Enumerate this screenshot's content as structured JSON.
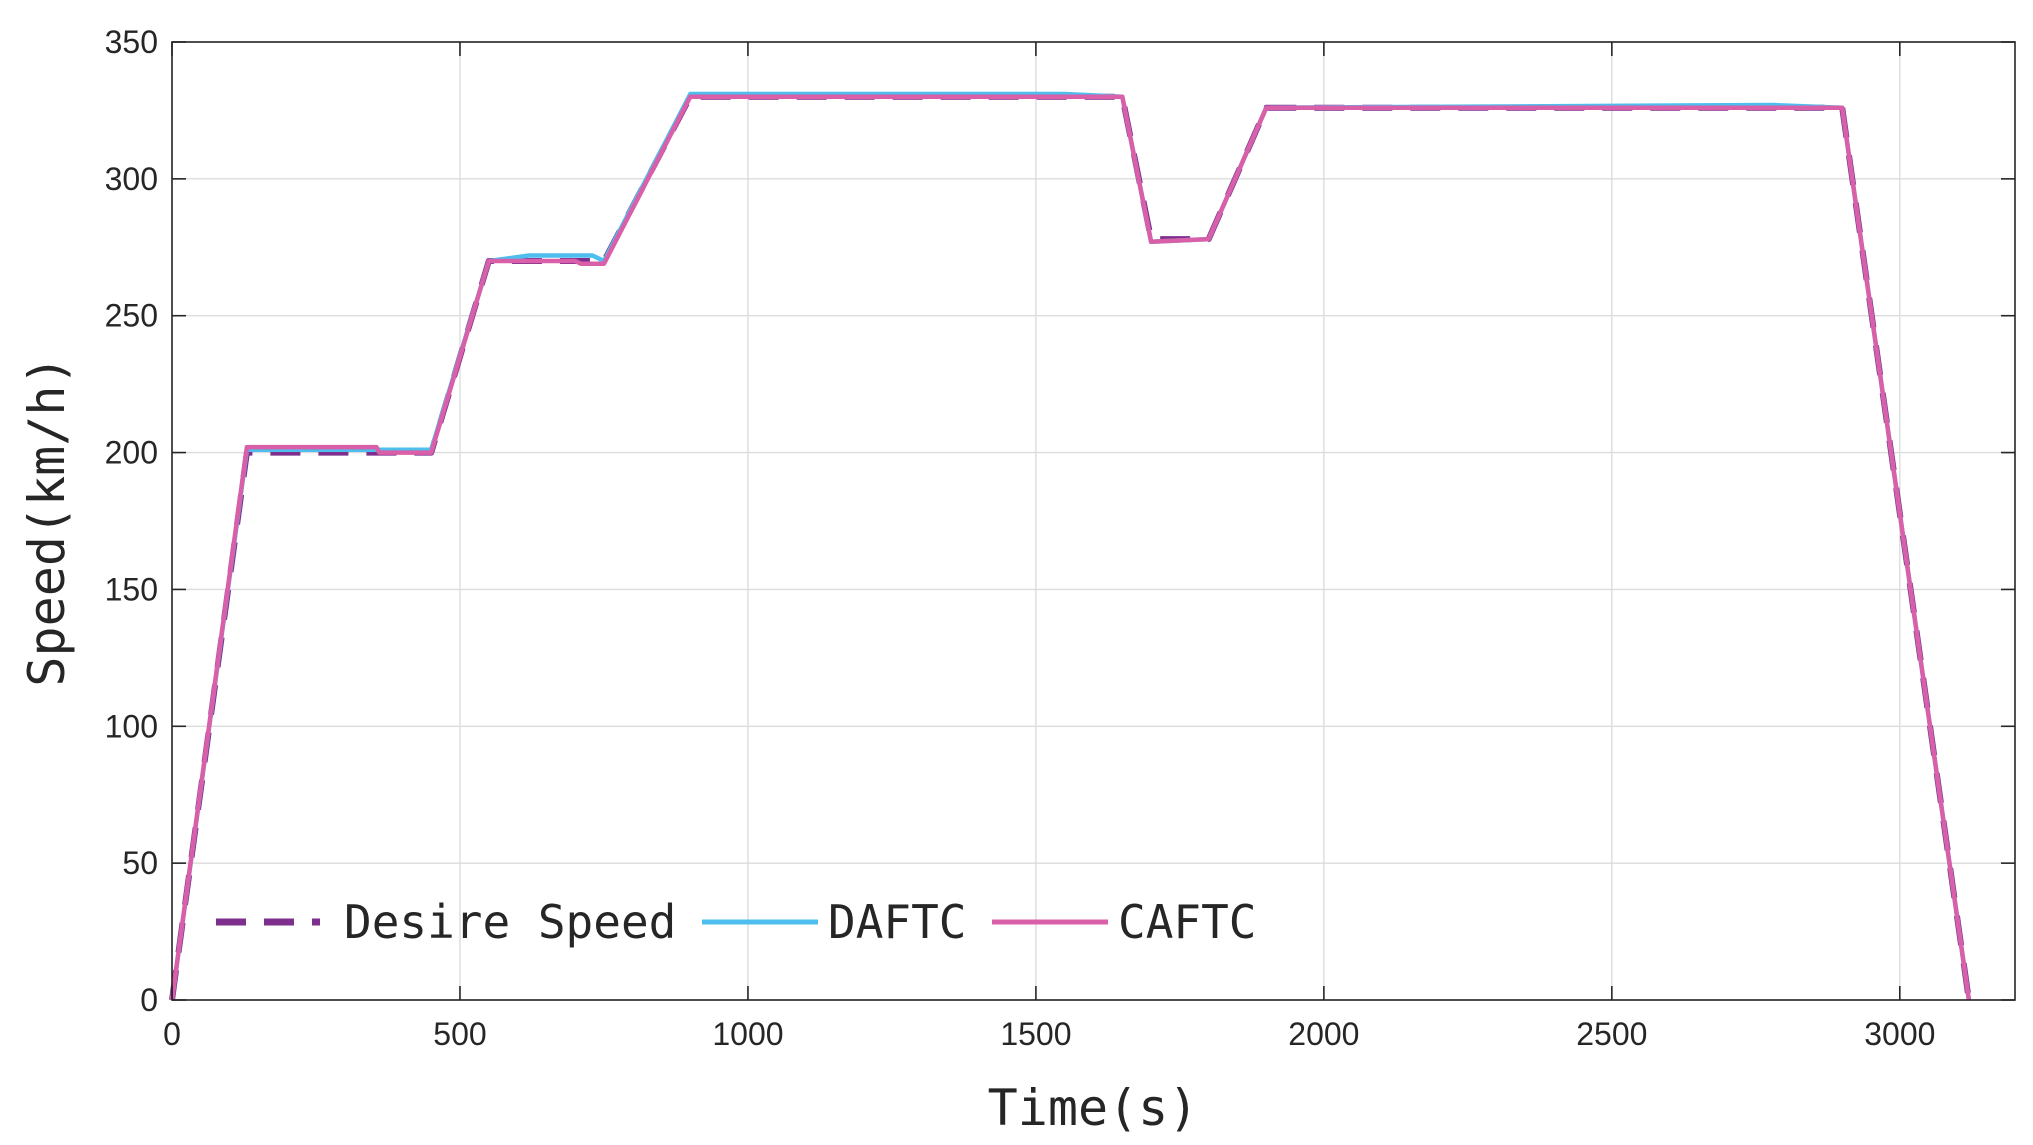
{
  "chart_data": {
    "type": "line",
    "xlabel": "Time(s)",
    "ylabel": "Speed(km/h)",
    "xlim": [
      0,
      3200
    ],
    "ylim": [
      0,
      350
    ],
    "xticks": [
      0,
      500,
      1000,
      1500,
      2000,
      2500,
      3000
    ],
    "yticks": [
      0,
      50,
      100,
      150,
      200,
      250,
      300,
      350
    ],
    "grid": true,
    "legend_position": "bottom-left",
    "series": [
      {
        "name": "Desire Speed",
        "color": "#7e2f8e",
        "style": "dashed",
        "x": [
          0,
          130,
          450,
          550,
          750,
          900,
          1650,
          1700,
          1800,
          1900,
          2900,
          3120
        ],
        "y": [
          0,
          200,
          200,
          270,
          270,
          330,
          330,
          278,
          278,
          326,
          326,
          0
        ]
      },
      {
        "name": "DAFTC",
        "color": "#4dbeee",
        "style": "solid",
        "x": [
          0,
          130,
          350,
          450,
          550,
          620,
          730,
          750,
          900,
          1550,
          1650,
          1700,
          1800,
          1900,
          2780,
          2900,
          3120
        ],
        "y": [
          0,
          201,
          201,
          201,
          270,
          272,
          272,
          270,
          331,
          331,
          330,
          277,
          278,
          326,
          327,
          326,
          0
        ]
      },
      {
        "name": "CAFTC",
        "color": "#d95fa8",
        "style": "solid",
        "x": [
          0,
          130,
          355,
          360,
          450,
          550,
          700,
          710,
          750,
          900,
          1650,
          1700,
          1800,
          1900,
          2900,
          3120
        ],
        "y": [
          0,
          202,
          202,
          200,
          200,
          270,
          270,
          269,
          269,
          330,
          330,
          277,
          278,
          326,
          326,
          0
        ]
      }
    ]
  }
}
